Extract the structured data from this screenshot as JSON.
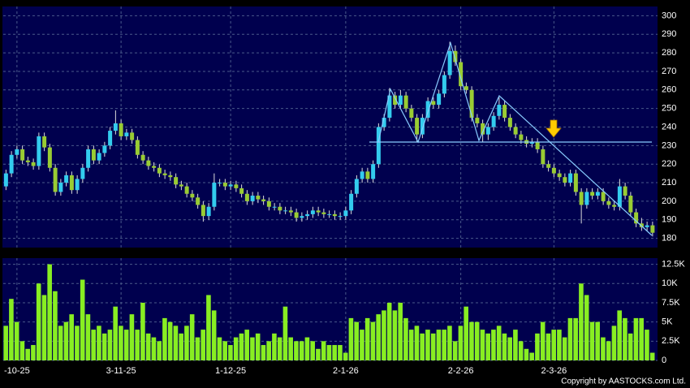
{
  "chart_data": {
    "type": "candlestick",
    "categories": [
      null,
      null,
      "-10-25",
      null,
      null,
      null,
      null,
      null,
      null,
      null,
      null,
      null,
      null,
      null,
      null,
      null,
      null,
      null,
      null,
      null,
      null,
      "3-11-25",
      null,
      null,
      null,
      null,
      null,
      null,
      null,
      null,
      null,
      null,
      null,
      null,
      null,
      null,
      null,
      null,
      null,
      null,
      null,
      "1-12-25",
      null,
      null,
      null,
      null,
      null,
      null,
      null,
      null,
      null,
      null,
      null,
      null,
      null,
      null,
      null,
      null,
      null,
      null,
      null,
      null,
      "2-1-26",
      null,
      null,
      null,
      null,
      null,
      null,
      null,
      null,
      null,
      null,
      null,
      null,
      null,
      null,
      null,
      null,
      null,
      null,
      null,
      null,
      "2-2-26",
      null,
      null,
      null,
      null,
      null,
      null,
      null,
      null,
      null,
      null,
      null,
      null,
      null,
      null,
      null,
      null,
      "2-3-26",
      null,
      null,
      null,
      null,
      null,
      null,
      null,
      null,
      null,
      null,
      null,
      null,
      null,
      null,
      null,
      null,
      null,
      null
    ],
    "open": [
      208,
      215,
      225,
      228,
      222,
      221,
      219,
      235,
      229,
      218,
      205,
      210,
      214,
      206,
      212,
      218,
      228,
      222,
      226,
      230,
      238,
      242,
      235,
      237,
      233,
      225,
      222,
      219,
      218,
      215,
      214,
      213,
      209,
      208,
      204,
      202,
      198,
      192,
      197,
      210,
      210,
      208,
      209,
      207,
      204,
      200,
      203,
      201,
      200,
      197,
      197,
      195,
      195,
      194,
      191,
      192,
      193,
      195,
      194,
      193,
      193,
      192,
      192,
      195,
      204,
      212,
      216,
      212,
      220,
      240,
      245,
      257,
      252,
      257,
      250,
      245,
      236,
      245,
      254,
      252,
      258,
      268,
      281,
      275,
      262,
      260,
      245,
      242,
      236,
      240,
      246,
      252,
      245,
      240,
      236,
      233,
      231,
      232,
      228,
      220,
      218,
      215,
      213,
      210,
      215,
      205,
      198,
      205,
      203,
      205,
      200,
      198,
      197,
      208,
      203,
      194,
      188,
      186,
      187
    ],
    "high": [
      217,
      227,
      230,
      230,
      224,
      223,
      237,
      237,
      231,
      220,
      212,
      216,
      216,
      214,
      220,
      230,
      230,
      228,
      232,
      240,
      249,
      244,
      239,
      239,
      235,
      227,
      224,
      221,
      220,
      217,
      216,
      215,
      211,
      210,
      206,
      204,
      200,
      199,
      215,
      212,
      212,
      211,
      211,
      209,
      206,
      205,
      205,
      203,
      202,
      199,
      199,
      197,
      197,
      196,
      194,
      195,
      197,
      197,
      196,
      195,
      195,
      194,
      197,
      206,
      214,
      218,
      218,
      222,
      242,
      247,
      261,
      259,
      260,
      259,
      252,
      247,
      247,
      256,
      256,
      260,
      270,
      286,
      284,
      277,
      264,
      262,
      247,
      244,
      242,
      248,
      256,
      254,
      247,
      242,
      238,
      235,
      234,
      234,
      230,
      222,
      220,
      217,
      215,
      217,
      217,
      207,
      207,
      207,
      207,
      207,
      202,
      200,
      212,
      210,
      205,
      196,
      191,
      189,
      189
    ],
    "low": [
      206,
      213,
      223,
      220,
      219,
      217,
      217,
      227,
      216,
      203,
      203,
      208,
      204,
      204,
      210,
      216,
      220,
      220,
      224,
      228,
      236,
      233,
      233,
      231,
      223,
      220,
      217,
      216,
      213,
      212,
      211,
      207,
      206,
      202,
      200,
      196,
      189,
      190,
      195,
      208,
      206,
      206,
      205,
      202,
      198,
      198,
      199,
      198,
      195,
      195,
      193,
      193,
      192,
      189,
      189,
      190,
      191,
      192,
      191,
      191,
      190,
      190,
      190,
      193,
      202,
      210,
      210,
      210,
      218,
      238,
      243,
      250,
      250,
      248,
      243,
      232,
      234,
      243,
      250,
      250,
      256,
      266,
      273,
      260,
      258,
      243,
      240,
      232,
      233,
      238,
      244,
      243,
      238,
      234,
      231,
      229,
      229,
      226,
      218,
      216,
      213,
      211,
      208,
      208,
      203,
      188,
      196,
      201,
      201,
      198,
      196,
      195,
      195,
      201,
      192,
      186,
      184,
      184,
      181
    ],
    "close": [
      215,
      225,
      228,
      222,
      221,
      219,
      235,
      229,
      218,
      205,
      210,
      214,
      206,
      212,
      218,
      228,
      222,
      226,
      230,
      238,
      242,
      235,
      237,
      233,
      225,
      222,
      219,
      218,
      215,
      214,
      213,
      209,
      208,
      204,
      202,
      198,
      192,
      197,
      210,
      210,
      208,
      209,
      207,
      204,
      200,
      203,
      201,
      200,
      197,
      197,
      195,
      195,
      194,
      191,
      192,
      193,
      195,
      194,
      193,
      193,
      192,
      192,
      195,
      204,
      212,
      216,
      212,
      220,
      240,
      245,
      257,
      252,
      257,
      250,
      245,
      236,
      245,
      254,
      252,
      258,
      268,
      281,
      275,
      262,
      260,
      245,
      242,
      236,
      240,
      246,
      252,
      245,
      240,
      236,
      233,
      231,
      232,
      228,
      220,
      218,
      215,
      213,
      210,
      215,
      205,
      198,
      205,
      203,
      205,
      200,
      198,
      197,
      208,
      203,
      194,
      188,
      186,
      187,
      183
    ],
    "up_color": "#33ccee",
    "down_color": "#99cc33",
    "ylim": [
      175,
      305
    ],
    "yticks": [
      180,
      190,
      200,
      210,
      220,
      230,
      240,
      250,
      260,
      270,
      280,
      290,
      300
    ],
    "grid": true,
    "volume": {
      "color": "#88ee22",
      "ylim": [
        0,
        13300
      ],
      "yticks": [
        0,
        {
          "value": 2500,
          "label": "2.5K"
        },
        {
          "value": 5000,
          "label": "5K"
        },
        {
          "value": 7500,
          "label": "7.5K"
        },
        {
          "value": 10000,
          "label": "10K"
        },
        {
          "value": 12500,
          "label": "12.5K"
        }
      ],
      "values": [
        4500,
        8000,
        5000,
        2500,
        1500,
        2000,
        10000,
        8500,
        12500,
        9000,
        4500,
        5000,
        6000,
        4500,
        10500,
        6000,
        4000,
        4500,
        3500,
        4000,
        7000,
        4500,
        4000,
        6000,
        4000,
        7500,
        3500,
        3000,
        2500,
        5500,
        5000,
        4500,
        3500,
        4500,
        6000,
        3000,
        4000,
        8500,
        6500,
        3000,
        2500,
        2000,
        3000,
        3500,
        4000,
        3000,
        3500,
        2000,
        2500,
        3500,
        3000,
        7000,
        3000,
        2500,
        2500,
        3000,
        2500,
        1500,
        2500,
        2000,
        2000,
        2000,
        1000,
        5500,
        5000,
        4000,
        5500,
        5000,
        6000,
        6500,
        7500,
        6500,
        7500,
        5500,
        4000,
        4500,
        3500,
        4000,
        3500,
        4000,
        4000,
        4500,
        2500,
        4500,
        7000,
        5000,
        5000,
        4000,
        3500,
        4000,
        4500,
        3500,
        3000,
        4000,
        2500,
        1500,
        1000,
        3500,
        5000,
        3500,
        4000,
        4000,
        3000,
        5500,
        5500,
        10000,
        8500,
        5000,
        5000,
        3000,
        2500,
        4500,
        6500,
        5500,
        3500,
        5500,
        5500,
        4000,
        1000
      ]
    },
    "source": "Copyright by AASTOCKS.com Ltd."
  }
}
